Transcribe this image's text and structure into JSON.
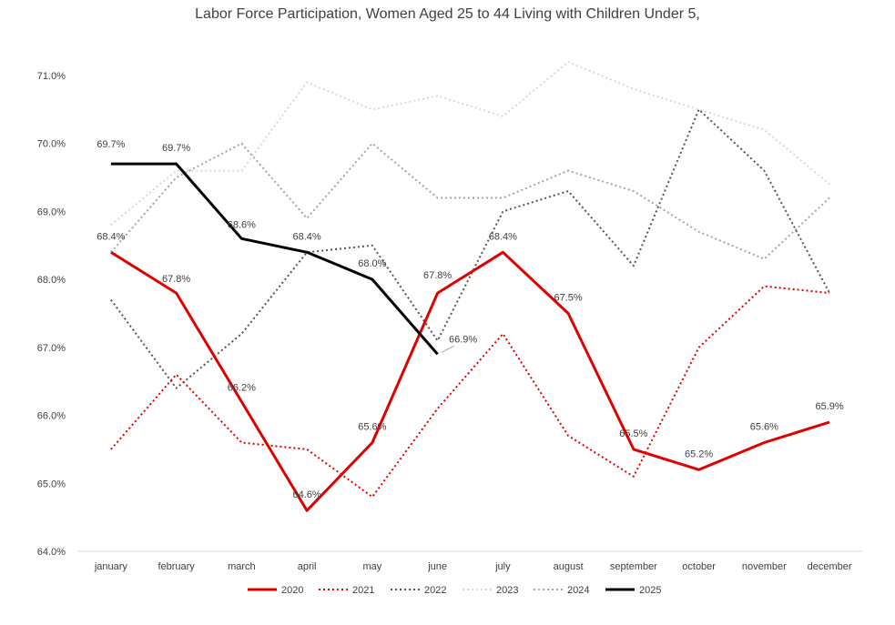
{
  "chart_data": {
    "type": "line",
    "title": "Labor Force Participation, Women Aged 25 to 44 Living with Children Under 5,",
    "xlabel": "",
    "ylabel": "",
    "categories": [
      "january",
      "february",
      "march",
      "april",
      "may",
      "june",
      "july",
      "august",
      "september",
      "october",
      "november",
      "december"
    ],
    "y_ticks": [
      "64.0%",
      "65.0%",
      "66.0%",
      "67.0%",
      "68.0%",
      "69.0%",
      "70.0%",
      "71.0%"
    ],
    "ylim": [
      64.0,
      71.0
    ],
    "grid": false,
    "legend_position": "bottom",
    "series": [
      {
        "name": "2020",
        "color": "#e00000",
        "style": "solid",
        "width": 3,
        "values": [
          68.4,
          67.8,
          66.2,
          64.6,
          65.6,
          67.8,
          68.4,
          67.5,
          65.5,
          65.2,
          65.6,
          65.9
        ],
        "labels": [
          "68.4%",
          "67.8%",
          "66.2%",
          "64.6%",
          "65.6%",
          "67.8%",
          "68.4%",
          "67.5%",
          "65.5%",
          "65.2%",
          "65.6%",
          "65.9%"
        ]
      },
      {
        "name": "2021",
        "color": "#e00000",
        "style": "dotted",
        "width": 2,
        "values": [
          65.5,
          66.6,
          65.6,
          65.5,
          64.8,
          66.1,
          67.2,
          65.7,
          65.1,
          67.0,
          67.9,
          67.8
        ]
      },
      {
        "name": "2022",
        "color": "#555555",
        "style": "dotted",
        "width": 2,
        "values": [
          67.7,
          66.4,
          67.2,
          68.4,
          68.5,
          67.1,
          69.0,
          69.3,
          68.2,
          70.5,
          69.6,
          67.8
        ]
      },
      {
        "name": "2023",
        "color": "#d9d9d9",
        "style": "dotted",
        "width": 2,
        "values": [
          68.8,
          69.6,
          69.6,
          70.9,
          70.5,
          70.7,
          70.4,
          71.2,
          70.8,
          70.5,
          70.2,
          69.4
        ]
      },
      {
        "name": "2024",
        "color": "#a6a6a6",
        "style": "dotted",
        "width": 2,
        "values": [
          68.4,
          69.5,
          70.0,
          68.9,
          70.0,
          69.2,
          69.2,
          69.6,
          69.3,
          68.7,
          68.3,
          69.2
        ]
      },
      {
        "name": "2025",
        "color": "#000000",
        "style": "solid",
        "width": 3,
        "values": [
          69.7,
          69.7,
          68.6,
          68.4,
          68.0,
          66.9,
          null,
          null,
          null,
          null,
          null,
          null
        ],
        "labels": [
          "69.7%",
          "69.7%",
          "68.6%",
          "68.4%",
          "68.0%",
          "66.9%",
          null,
          null,
          null,
          null,
          null,
          null
        ]
      }
    ]
  }
}
